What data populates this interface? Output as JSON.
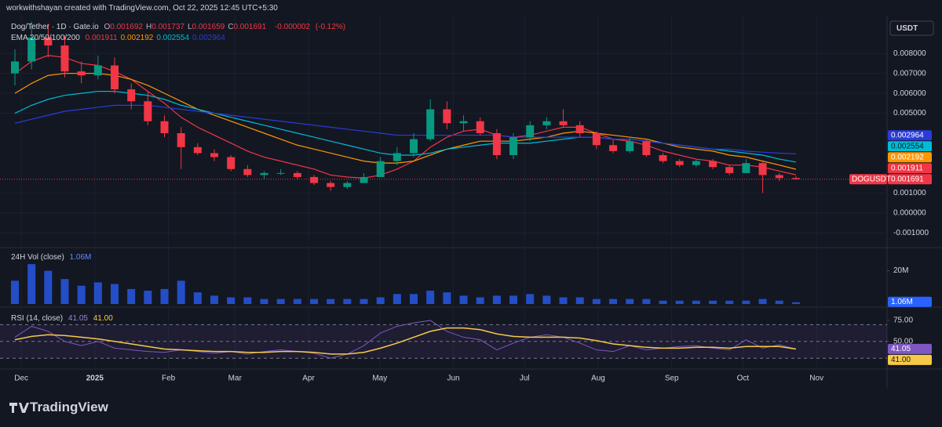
{
  "header": "workwithshayan created with TradingView.com, Oct 22, 2025 12:45 UTC+5:30",
  "brand": "TradingView",
  "chart_data": [
    {
      "type": "candlestick",
      "title": "Dog/Tether · 1D · Gate.io",
      "ohlc": [
        {
          "label": "O",
          "value": 0.001692
        },
        {
          "label": "H",
          "value": 0.001737
        },
        {
          "label": "L",
          "value": 0.001659
        },
        {
          "label": "C",
          "value": 0.001691
        }
      ],
      "change": -2e-06,
      "change_pct": "(-0.12%)",
      "indicator": "EMA 20/50/100/200",
      "symbol_label": "DOGUSDT",
      "currency": "USDT",
      "up_color": "#089981",
      "down_color": "#f23645",
      "x": [
        "2024-11-25",
        "2024-12-02",
        "2024-12-09",
        "2024-12-16",
        "2024-12-23",
        "2024-12-30",
        "2025-01-06",
        "2025-01-13",
        "2025-01-20",
        "2025-01-27",
        "2025-02-03",
        "2025-02-10",
        "2025-02-17",
        "2025-02-24",
        "2025-03-03",
        "2025-03-10",
        "2025-03-17",
        "2025-03-24",
        "2025-03-31",
        "2025-04-07",
        "2025-04-14",
        "2025-04-21",
        "2025-04-28",
        "2025-05-05",
        "2025-05-12",
        "2025-05-19",
        "2025-05-26",
        "2025-06-02",
        "2025-06-09",
        "2025-06-16",
        "2025-06-23",
        "2025-06-30",
        "2025-07-07",
        "2025-07-14",
        "2025-07-21",
        "2025-07-28",
        "2025-08-04",
        "2025-08-11",
        "2025-08-18",
        "2025-08-25",
        "2025-09-01",
        "2025-09-08",
        "2025-09-15",
        "2025-09-22",
        "2025-09-29",
        "2025-10-06",
        "2025-10-13",
        "2025-10-20"
      ],
      "open": [
        0.007,
        0.0076,
        0.0088,
        0.0084,
        0.0071,
        0.0069,
        0.0074,
        0.0062,
        0.0056,
        0.0046,
        0.004,
        0.0033,
        0.003,
        0.0028,
        0.0022,
        0.0019,
        0.002,
        0.002,
        0.0018,
        0.0015,
        0.0013,
        0.0015,
        0.0018,
        0.0026,
        0.003,
        0.0037,
        0.0052,
        0.0045,
        0.0046,
        0.004,
        0.0029,
        0.0038,
        0.0044,
        0.0046,
        0.0044,
        0.004,
        0.0034,
        0.0031,
        0.0036,
        0.0029,
        0.0026,
        0.0024,
        0.0026,
        0.0023,
        0.002,
        0.0025,
        0.0019,
        0.00175
      ],
      "high": [
        0.0082,
        0.0096,
        0.0095,
        0.0089,
        0.0076,
        0.0079,
        0.0078,
        0.0065,
        0.0061,
        0.0049,
        0.0043,
        0.0035,
        0.0032,
        0.0029,
        0.0024,
        0.0021,
        0.0022,
        0.0021,
        0.0019,
        0.0016,
        0.0016,
        0.002,
        0.0028,
        0.0033,
        0.004,
        0.0057,
        0.0056,
        0.0049,
        0.0048,
        0.0042,
        0.004,
        0.0046,
        0.0048,
        0.0052,
        0.0046,
        0.0041,
        0.0037,
        0.0038,
        0.0037,
        0.003,
        0.0027,
        0.0027,
        0.0027,
        0.0024,
        0.0027,
        0.0026,
        0.002,
        0.00184
      ],
      "low": [
        0.0064,
        0.0072,
        0.0078,
        0.0068,
        0.0065,
        0.0067,
        0.006,
        0.0052,
        0.0044,
        0.0038,
        0.0022,
        0.0029,
        0.0026,
        0.0021,
        0.0018,
        0.0017,
        0.0019,
        0.0017,
        0.0014,
        0.0011,
        0.0012,
        0.0015,
        0.0018,
        0.0024,
        0.0028,
        0.0036,
        0.0042,
        0.0041,
        0.0039,
        0.0027,
        0.0027,
        0.0036,
        0.0042,
        0.0043,
        0.0038,
        0.0032,
        0.003,
        0.003,
        0.0028,
        0.0025,
        0.0023,
        0.0023,
        0.0022,
        0.0019,
        0.002,
        0.001,
        0.0016,
        0.001659
      ],
      "close": [
        0.0076,
        0.0088,
        0.0084,
        0.0071,
        0.0069,
        0.0074,
        0.0062,
        0.0056,
        0.0046,
        0.004,
        0.0033,
        0.003,
        0.0028,
        0.0022,
        0.0019,
        0.002,
        0.002,
        0.0018,
        0.0015,
        0.0013,
        0.0015,
        0.0018,
        0.0026,
        0.003,
        0.0037,
        0.0052,
        0.0045,
        0.0046,
        0.004,
        0.0029,
        0.0038,
        0.0044,
        0.0046,
        0.0044,
        0.004,
        0.0034,
        0.0031,
        0.0036,
        0.0029,
        0.0026,
        0.0024,
        0.0026,
        0.0023,
        0.002,
        0.0025,
        0.0019,
        0.00175,
        0.001691
      ],
      "series": [
        {
          "color": "#f23645",
          "values": [
            0.007,
            0.0076,
            0.0079,
            0.0078,
            0.0075,
            0.0074,
            0.0071,
            0.0067,
            0.0061,
            0.0055,
            0.0048,
            0.0043,
            0.0039,
            0.0035,
            0.0031,
            0.0028,
            0.0026,
            0.0024,
            0.0022,
            0.0019,
            0.0018,
            0.00175,
            0.0019,
            0.0022,
            0.0026,
            0.0033,
            0.0038,
            0.0041,
            0.0042,
            0.0039,
            0.0038,
            0.0039,
            0.0041,
            0.0043,
            0.0043,
            0.004,
            0.0037,
            0.0036,
            0.0034,
            0.0031,
            0.0029,
            0.0027,
            0.0026,
            0.0024,
            0.0024,
            0.0023,
            0.0021,
            0.001911
          ]
        },
        {
          "color": "#ff9800",
          "values": [
            0.006,
            0.0065,
            0.0069,
            0.007,
            0.007,
            0.007,
            0.0069,
            0.0067,
            0.0064,
            0.006,
            0.0056,
            0.0052,
            0.0049,
            0.0046,
            0.0043,
            0.004,
            0.0037,
            0.0034,
            0.0032,
            0.003,
            0.0028,
            0.0026,
            0.0025,
            0.0025,
            0.0026,
            0.0029,
            0.0032,
            0.0034,
            0.0036,
            0.0036,
            0.0036,
            0.0037,
            0.0038,
            0.004,
            0.0041,
            0.004,
            0.0039,
            0.0038,
            0.0037,
            0.0035,
            0.0033,
            0.0032,
            0.0031,
            0.0029,
            0.0028,
            0.0026,
            0.0024,
            0.002192
          ]
        },
        {
          "color": "#00bcd4",
          "values": [
            0.005,
            0.0054,
            0.0057,
            0.0059,
            0.006,
            0.0061,
            0.0061,
            0.006,
            0.0059,
            0.0057,
            0.0054,
            0.0052,
            0.005,
            0.0048,
            0.0046,
            0.0044,
            0.0042,
            0.004,
            0.0038,
            0.0036,
            0.0034,
            0.0032,
            0.003,
            0.0029,
            0.0029,
            0.003,
            0.0032,
            0.0033,
            0.0034,
            0.0035,
            0.0035,
            0.0035,
            0.0036,
            0.0037,
            0.0038,
            0.0038,
            0.0037,
            0.0037,
            0.0036,
            0.0035,
            0.0034,
            0.0033,
            0.0032,
            0.0031,
            0.003,
            0.0029,
            0.0027,
            0.002554
          ]
        },
        {
          "color": "#2a3bd9",
          "values": [
            0.0045,
            0.0047,
            0.0049,
            0.0051,
            0.0052,
            0.0053,
            0.0054,
            0.0054,
            0.0054,
            0.0053,
            0.0052,
            0.0051,
            0.005,
            0.0049,
            0.0048,
            0.0047,
            0.0046,
            0.0045,
            0.0044,
            0.0043,
            0.0042,
            0.0041,
            0.004,
            0.0039,
            0.0039,
            0.0039,
            0.0039,
            0.0039,
            0.0039,
            0.0039,
            0.0038,
            0.0038,
            0.0038,
            0.0038,
            0.0038,
            0.0038,
            0.0037,
            0.0037,
            0.0036,
            0.0035,
            0.0034,
            0.0033,
            0.0032,
            0.0032,
            0.0031,
            0.00305,
            0.003,
            0.002964
          ]
        }
      ],
      "ylim": [
        -0.0017,
        0.0097
      ],
      "yticks": [
        {
          "value": -0.001,
          "label": "-0.001000"
        },
        {
          "value": 0,
          "label": "0.000000"
        },
        {
          "value": 0.001,
          "label": "0.001000"
        },
        {
          "value": 0.005,
          "label": "0.005000"
        },
        {
          "value": 0.006,
          "label": "0.006000"
        },
        {
          "value": 0.007,
          "label": "0.007000"
        },
        {
          "value": 0.008,
          "label": "0.008000"
        }
      ],
      "xticks": [
        {
          "value": "2024-12-01",
          "label": "Dec"
        },
        {
          "value": "2025-01-01",
          "label": "2025"
        },
        {
          "value": "2025-02-01",
          "label": "Feb"
        },
        {
          "value": "2025-03-01",
          "label": "Mar"
        },
        {
          "value": "2025-04-01",
          "label": "Apr"
        },
        {
          "value": "2025-05-01",
          "label": "May"
        },
        {
          "value": "2025-06-01",
          "label": "Jun"
        },
        {
          "value": "2025-07-01",
          "label": "Jul"
        },
        {
          "value": "2025-08-01",
          "label": "Aug"
        },
        {
          "value": "2025-09-01",
          "label": "Sep"
        },
        {
          "value": "2025-10-01",
          "label": "Oct"
        },
        {
          "value": "2025-11-01",
          "label": "Nov"
        }
      ],
      "grid": true
    },
    {
      "type": "bar",
      "title": "24H Vol (close)",
      "color": "#2962ff",
      "values": [
        14000000,
        24000000,
        20000000,
        15000000,
        11000000,
        13000000,
        12000000,
        9000000,
        8000000,
        9000000,
        14000000,
        7000000,
        5000000,
        4000000,
        4000000,
        3000000,
        3000000,
        3000000,
        3000000,
        3000000,
        3000000,
        3000000,
        4000000,
        6000000,
        6000000,
        8000000,
        7000000,
        5000000,
        4000000,
        5000000,
        5000000,
        6000000,
        5000000,
        4000000,
        4000000,
        3000000,
        3000000,
        3000000,
        3000000,
        2000000,
        2000000,
        2000000,
        2000000,
        2000000,
        2000000,
        3000000,
        2000000,
        1060000
      ],
      "value_labels": [
        null,
        null,
        null,
        null,
        null,
        null,
        null,
        null,
        null,
        null,
        null,
        null,
        null,
        null,
        null,
        null,
        null,
        null,
        null,
        null,
        null,
        null,
        null,
        null,
        null,
        null,
        null,
        null,
        null,
        null,
        null,
        null,
        null,
        null,
        null,
        null,
        null,
        null,
        null,
        null,
        null,
        null,
        null,
        null,
        null,
        null,
        null,
        "1.06M"
      ],
      "ylim": [
        0,
        33000000
      ],
      "yticks": [
        {
          "value": 20000000,
          "label": "20M"
        }
      ]
    },
    {
      "type": "line",
      "title": "RSI (14, close)",
      "series": [
        {
          "color": "#7e57c2",
          "values": [
            55,
            68,
            62,
            50,
            45,
            50,
            42,
            40,
            38,
            37,
            40,
            38,
            36,
            38,
            35,
            38,
            40,
            38,
            36,
            30,
            35,
            45,
            60,
            68,
            72,
            75,
            62,
            55,
            52,
            40,
            48,
            55,
            58,
            55,
            48,
            40,
            38,
            45,
            40,
            42,
            44,
            45,
            42,
            40,
            52,
            42,
            46,
            41.05
          ]
        },
        {
          "color": "#f7c948",
          "values": [
            52,
            56,
            58,
            57,
            55,
            53,
            50,
            47,
            44,
            41,
            40,
            39,
            38,
            38,
            37,
            37,
            38,
            38,
            37,
            35,
            35,
            37,
            42,
            48,
            55,
            62,
            66,
            66,
            64,
            59,
            56,
            55,
            55,
            55,
            54,
            51,
            47,
            45,
            43,
            42,
            42,
            43,
            43,
            42,
            44,
            44,
            44,
            41
          ],
          "value_labels": [
            null,
            null,
            null,
            null,
            null,
            null,
            null,
            null,
            null,
            null,
            null,
            null,
            null,
            null,
            null,
            null,
            null,
            null,
            null,
            null,
            null,
            null,
            null,
            null,
            null,
            null,
            null,
            null,
            null,
            null,
            null,
            null,
            null,
            null,
            null,
            null,
            null,
            null,
            null,
            null,
            null,
            null,
            null,
            null,
            null,
            null,
            null,
            "41.00"
          ]
        }
      ],
      "bands": [
        30,
        50,
        70
      ],
      "ylim": [
        20,
        88
      ],
      "yticks": [
        {
          "value": 75,
          "label": "75.00"
        },
        {
          "value": 50,
          "label": "50.00"
        }
      ]
    }
  ]
}
